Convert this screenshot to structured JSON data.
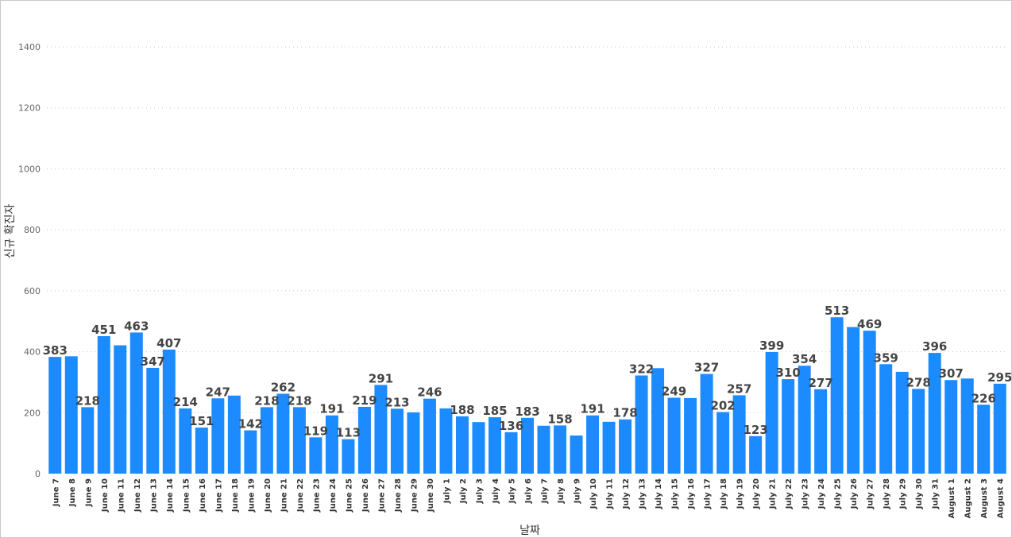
{
  "chart_data": {
    "type": "bar",
    "xlabel": "날짜",
    "ylabel": "신규 확진자",
    "ylim": [
      0,
      1400
    ],
    "yticks": [
      0,
      200,
      400,
      600,
      800,
      1000,
      1200,
      1400
    ],
    "grid": true,
    "bar_color": "#1B8BFF",
    "categories": [
      "June 7",
      "June 8",
      "June 9",
      "June 10",
      "June 11",
      "June 12",
      "June 13",
      "June 14",
      "June 15",
      "June 16",
      "June 17",
      "June 18",
      "June 19",
      "June 20",
      "June 21",
      "June 22",
      "June 23",
      "June 24",
      "June 25",
      "June 26",
      "June 27",
      "June 28",
      "June 29",
      "June 30",
      "July 1",
      "July 2",
      "July 3",
      "July 4",
      "July 5",
      "July 6",
      "July 7",
      "July 8",
      "July 9",
      "July 10",
      "July 11",
      "July 12",
      "July 13",
      "July 14",
      "July 15",
      "July 16",
      "July 17",
      "July 18",
      "July 19",
      "July 20",
      "July 21",
      "July 22",
      "July 23",
      "July 24",
      "July 25",
      "July 26",
      "July 27",
      "July 28",
      "July 29",
      "July 30",
      "July 31",
      "August 1",
      "August 2",
      "August 3",
      "August 4"
    ],
    "values": [
      383,
      385,
      218,
      451,
      421,
      463,
      347,
      407,
      214,
      151,
      247,
      256,
      142,
      218,
      262,
      218,
      119,
      191,
      113,
      219,
      291,
      213,
      201,
      246,
      214,
      188,
      169,
      185,
      136,
      183,
      157,
      158,
      125,
      191,
      170,
      178,
      322,
      346,
      249,
      248,
      327,
      202,
      257,
      123,
      399,
      310,
      354,
      277,
      513,
      481,
      469,
      359,
      334,
      278,
      396,
      307,
      312,
      226,
      295
    ],
    "labels": [
      "383",
      "",
      "218",
      "451",
      "",
      "463",
      "347",
      "407",
      "214",
      "151",
      "247",
      "",
      "142",
      "218",
      "262",
      "218",
      "119",
      "191",
      "113",
      "219",
      "291",
      "213",
      "",
      "246",
      "",
      "188",
      "",
      "185",
      "136",
      "183",
      "",
      "158",
      "",
      "191",
      "",
      "178",
      "322",
      "",
      "249",
      "",
      "327",
      "202",
      "257",
      "123",
      "399",
      "310",
      "354",
      "277",
      "513",
      "",
      "469",
      "359",
      "",
      "278",
      "396",
      "307",
      "",
      "226",
      "295"
    ]
  }
}
